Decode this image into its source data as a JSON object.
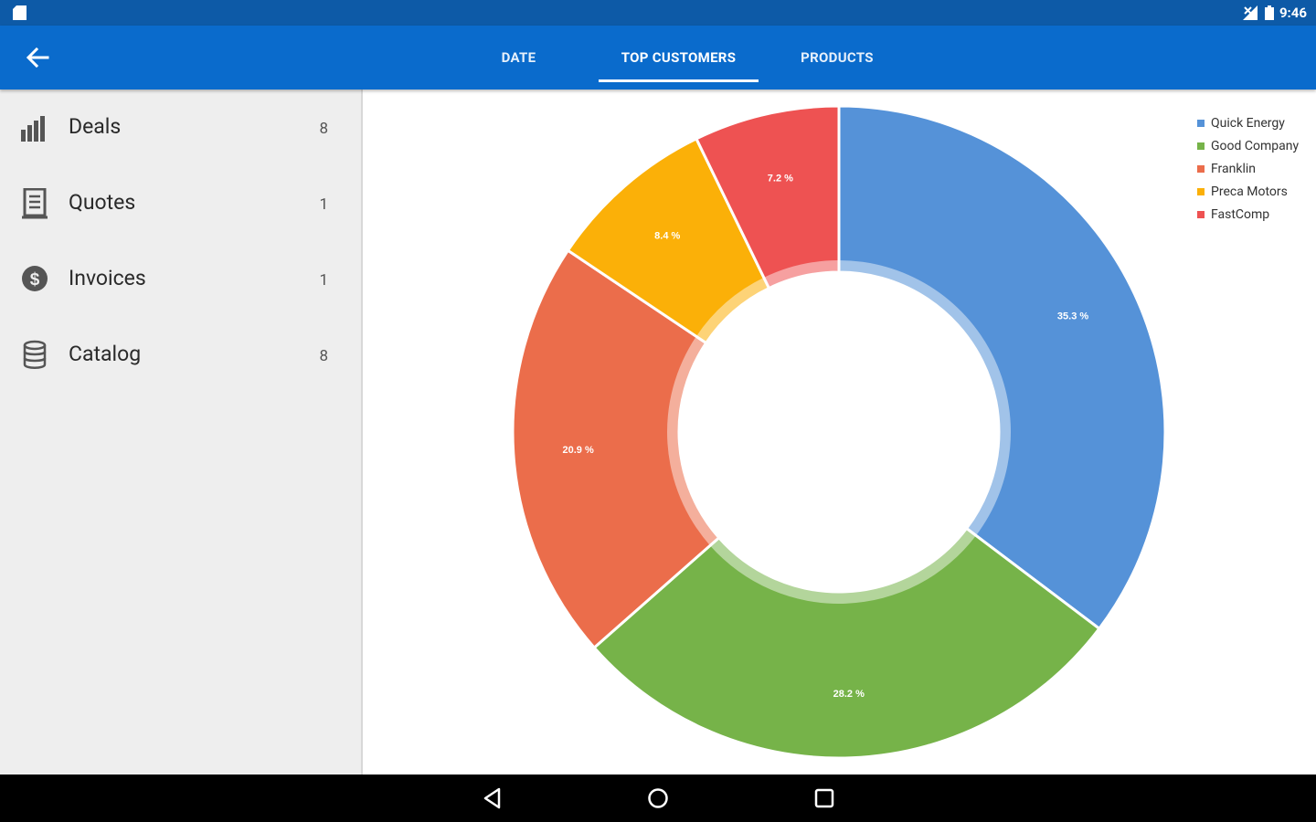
{
  "status_bar": {
    "time": "9:46"
  },
  "app_bar": {
    "tabs": [
      {
        "label": "DATE",
        "active": false
      },
      {
        "label": "TOP CUSTOMERS",
        "active": true
      },
      {
        "label": "PRODUCTS",
        "active": false
      }
    ]
  },
  "sidebar": {
    "items": [
      {
        "label": "Deals",
        "count": "8",
        "icon": "bar-chart-icon"
      },
      {
        "label": "Quotes",
        "count": "1",
        "icon": "document-icon"
      },
      {
        "label": "Invoices",
        "count": "1",
        "icon": "dollar-icon"
      },
      {
        "label": "Catalog",
        "count": "8",
        "icon": "database-icon"
      }
    ]
  },
  "colors": {
    "statusbar": "#0d5aa7",
    "appbar": "#0a6bcc",
    "sidebar_bg": "#eeeeee"
  },
  "chart_data": {
    "type": "pie",
    "donut": true,
    "legend_position": "top-right",
    "series": [
      {
        "name": "Quick Energy",
        "value": 35.3,
        "label": "35.3 %",
        "color": "#5592d8"
      },
      {
        "name": "Good Company",
        "value": 28.2,
        "label": "28.2 %",
        "color": "#76b349"
      },
      {
        "name": "Franklin",
        "value": 20.9,
        "label": "20.9 %",
        "color": "#eb6d4b"
      },
      {
        "name": "Preca Motors",
        "value": 8.4,
        "label": "8.4 %",
        "color": "#fbb008"
      },
      {
        "name": "FastComp",
        "value": 7.2,
        "label": "7.2 %",
        "color": "#ee5252"
      }
    ]
  }
}
